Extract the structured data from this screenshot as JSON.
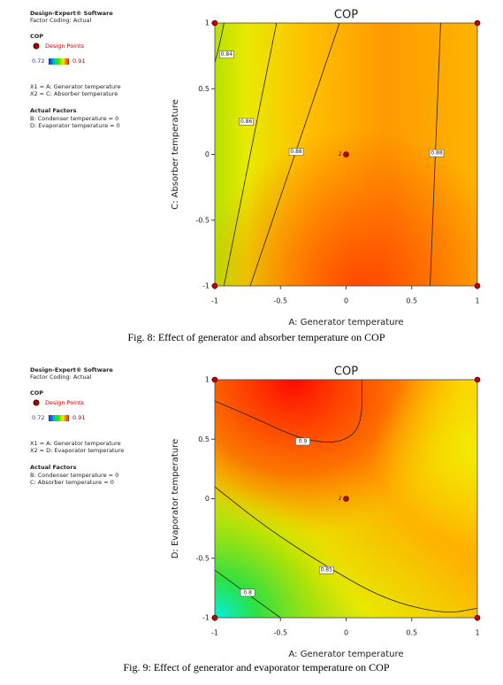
{
  "chart_data": [
    {
      "type": "contour",
      "title": "COP",
      "software": "Design-Expert® Software",
      "factor_coding": "Factor Coding: Actual",
      "response": "COP",
      "design_points_label": "Design Points",
      "color_range": [
        0.72,
        0.91
      ],
      "x1_label": "X1 = A: Generator temperature",
      "x2_label": "X2 = C: Absorber temperature",
      "actual_factors_title": "Actual Factors",
      "actual_factors": [
        "B: Condenser temperature = 0",
        "D: Evaporator temperature = 0"
      ],
      "xlabel": "A: Generator temperature",
      "ylabel": "C: Absorber temperature",
      "xlim": [
        -1,
        1
      ],
      "ylim": [
        -1,
        1
      ],
      "xticks": [
        -1,
        -0.5,
        0,
        0.5,
        1
      ],
      "yticks": [
        -1,
        -0.5,
        0,
        0.5,
        1
      ],
      "design_points": {
        "x": [
          -1,
          1,
          -1,
          1,
          0
        ],
        "y": [
          1,
          1,
          -1,
          -1,
          0
        ],
        "labels": [
          null,
          null,
          null,
          null,
          "2"
        ]
      },
      "contours": [
        0.84,
        0.86,
        0.88,
        0.88
      ],
      "caption": "Fig. 8: Effect of generator and absorber temperature on COP"
    },
    {
      "type": "contour",
      "title": "COP",
      "software": "Design-Expert® Software",
      "factor_coding": "Factor Coding: Actual",
      "response": "COP",
      "design_points_label": "Design Points",
      "color_range": [
        0.72,
        0.91
      ],
      "x1_label": "X1 = A: Generator temperature",
      "x2_label": "X2 = D: Evaporator temperature",
      "actual_factors_title": "Actual Factors",
      "actual_factors": [
        "B: Condenser temperature = 0",
        "C: Absorber temperature = 0"
      ],
      "xlabel": "A: Generator temperature",
      "ylabel": "D: Evaporator temperature",
      "xlim": [
        -1,
        1
      ],
      "ylim": [
        -1,
        1
      ],
      "xticks": [
        -1,
        -0.5,
        0,
        0.5,
        1
      ],
      "yticks": [
        -1,
        -0.5,
        0,
        0.5,
        1
      ],
      "design_points": {
        "x": [
          -1,
          1,
          -1,
          1,
          0
        ],
        "y": [
          1,
          1,
          -1,
          -1,
          0
        ],
        "labels": [
          null,
          null,
          null,
          null,
          "2"
        ]
      },
      "contours": [
        0.9,
        0.85,
        0.8
      ],
      "caption": "Fig. 9: Effect of generator and evaporator temperature on COP"
    }
  ]
}
